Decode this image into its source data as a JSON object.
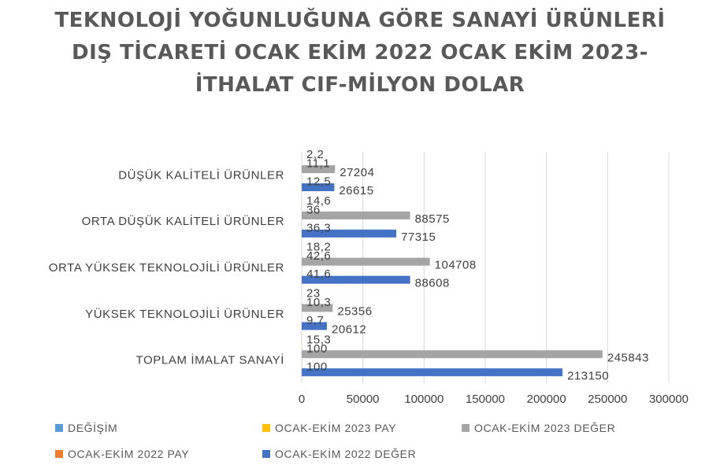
{
  "chart_data": {
    "type": "bar",
    "orientation": "horizontal",
    "title": "TEKNOLOJİ YOĞUNLUĞUNA GÖRE SANAYİ ÜRÜNLERİ DIŞ TİCARETİ  OCAK EKİM 2022 OCAK EKİM 2023-İTHALAT CIF-MİLYON DOLAR",
    "categories": [
      "DÜŞÜK KALİTELİ ÜRÜNLER",
      "ORTA DÜŞÜK KALİTELİ ÜRÜNLER",
      "ORTA YÜKSEK TEKNOLOJİLİ ÜRÜNLER",
      "YÜKSEK TEKNOLOJİLİ ÜRÜNLER",
      "TOPLAM İMALAT SANAYİ"
    ],
    "series": [
      {
        "name": "OCAK-EKİM 2022 DEĞER",
        "color": "#4472c4",
        "values": [
          26615,
          77315,
          88608,
          20612,
          213150
        ],
        "labels": [
          "26615",
          "77315",
          "88608",
          "20612",
          "213150"
        ]
      },
      {
        "name": "OCAK-EKİM 2022 PAY",
        "color": "#ed7d31",
        "values": [
          12.5,
          36.3,
          41.6,
          9.7,
          100
        ],
        "labels": [
          "12,5",
          "36,3",
          "41,6",
          "9,7",
          "100"
        ]
      },
      {
        "name": "OCAK-EKİM 2023 DEĞER",
        "color": "#a5a5a5",
        "values": [
          27204,
          88575,
          104708,
          25356,
          245843
        ],
        "labels": [
          "27204",
          "88575",
          "104708",
          "25356",
          "245843"
        ]
      },
      {
        "name": "OCAK-EKİM 2023 PAY",
        "color": "#ffc000",
        "values": [
          11.1,
          36,
          42.6,
          10.3,
          100
        ],
        "labels": [
          "11,1",
          "36",
          "42,6",
          "10,3",
          "100"
        ]
      },
      {
        "name": "DEĞİŞİM",
        "color": "#5b9bd5",
        "values": [
          2.2,
          14.6,
          18.2,
          23,
          15.3
        ],
        "labels": [
          "2,2",
          "14,6",
          "18,2",
          "23",
          "15,3"
        ]
      }
    ],
    "xlim": [
      0,
      300000
    ],
    "xticks": [
      "0",
      "50000",
      "100000",
      "150000",
      "200000",
      "250000",
      "300000"
    ],
    "grid": true,
    "legend_position": "bottom"
  }
}
